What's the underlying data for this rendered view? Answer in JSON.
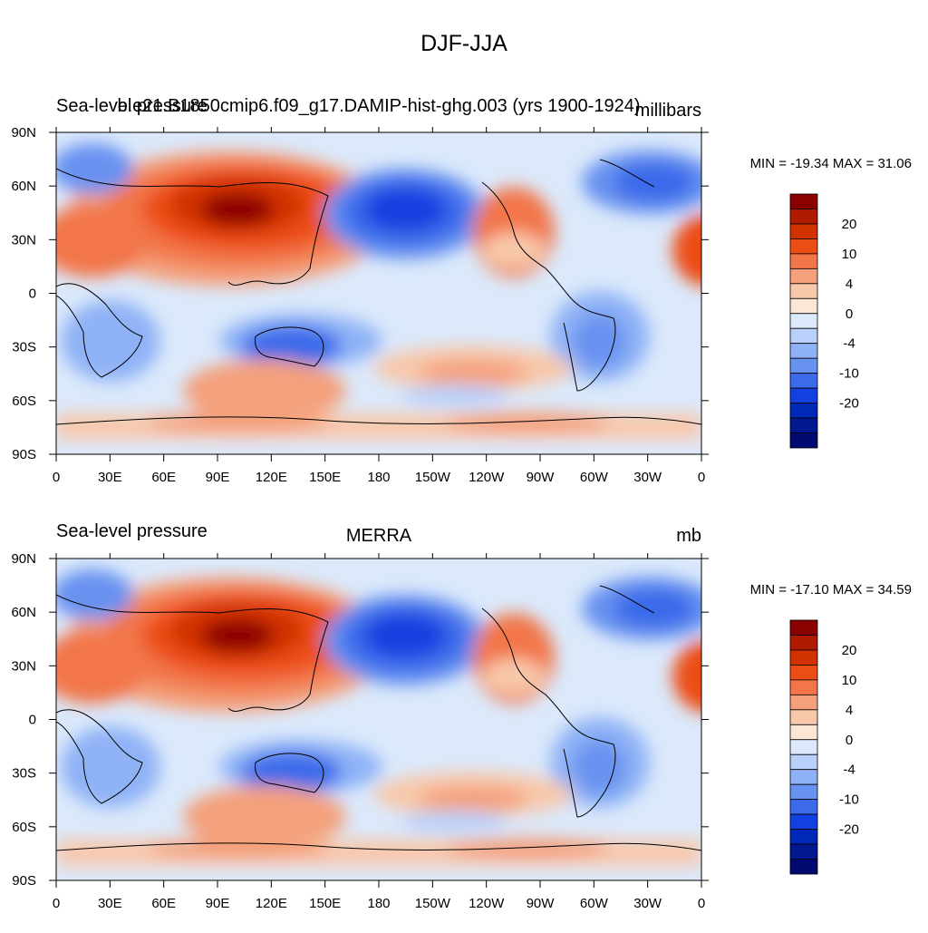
{
  "figure": {
    "title": "DJF-JJA"
  },
  "panels": [
    {
      "left_title": "Sea-level pressure",
      "center_title": "b.e21.B1850cmip6.f09_g17.DAMIP-hist-ghg.003 (yrs 1900-1924)",
      "units": "millibars",
      "min_max": "MIN = -19.34 MAX =  31.06"
    },
    {
      "left_title": "Sea-level pressure",
      "center_title": "MERRA",
      "units": "mb",
      "min_max": "MIN = -17.10 MAX =  34.59"
    }
  ],
  "axes": {
    "lon_ticks": [
      "0",
      "30E",
      "60E",
      "90E",
      "120E",
      "150E",
      "180",
      "150W",
      "120W",
      "90W",
      "60W",
      "30W",
      "0"
    ],
    "lat_ticks": [
      "90N",
      "60N",
      "30N",
      "0",
      "30S",
      "60S",
      "90S"
    ]
  },
  "colorbar": {
    "colors": [
      "#8b0000",
      "#b01a00",
      "#d23200",
      "#ec4d14",
      "#f2764a",
      "#f4a07c",
      "#f8c8aa",
      "#fde6d6",
      "#dbe9fb",
      "#b8d0fa",
      "#8fb2f6",
      "#6792f0",
      "#3b6aea",
      "#1340e0",
      "#0028b8",
      "#001890",
      "#000a70"
    ],
    "labels": [
      "20",
      "10",
      "4",
      "0",
      "-4",
      "-10",
      "-20"
    ]
  }
}
